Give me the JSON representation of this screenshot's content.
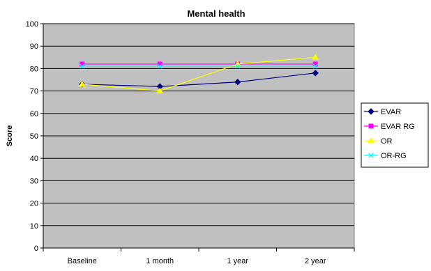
{
  "chart_data": {
    "type": "line",
    "title": "Mental health",
    "xlabel": "",
    "ylabel": "Score",
    "categories": [
      "Baseline",
      "1 month",
      "1 year",
      "2 year"
    ],
    "ylim": [
      0,
      100
    ],
    "yticks": [
      0,
      10,
      20,
      30,
      40,
      50,
      60,
      70,
      80,
      90,
      100
    ],
    "grid": true,
    "plot_background": "#c0c0c0",
    "legend_position": "right",
    "series": [
      {
        "name": "EVAR",
        "values": [
          73,
          72,
          74,
          78
        ],
        "color": "#000080",
        "marker": "diamond"
      },
      {
        "name": "EVAR RG",
        "values": [
          82,
          82,
          82,
          82
        ],
        "color": "#ff00ff",
        "marker": "square"
      },
      {
        "name": "OR",
        "values": [
          73,
          70,
          82,
          85
        ],
        "color": "#ffff00",
        "marker": "triangle"
      },
      {
        "name": "OR-RG",
        "values": [
          81,
          81,
          81,
          81
        ],
        "color": "#00ffff",
        "marker": "x"
      }
    ]
  }
}
